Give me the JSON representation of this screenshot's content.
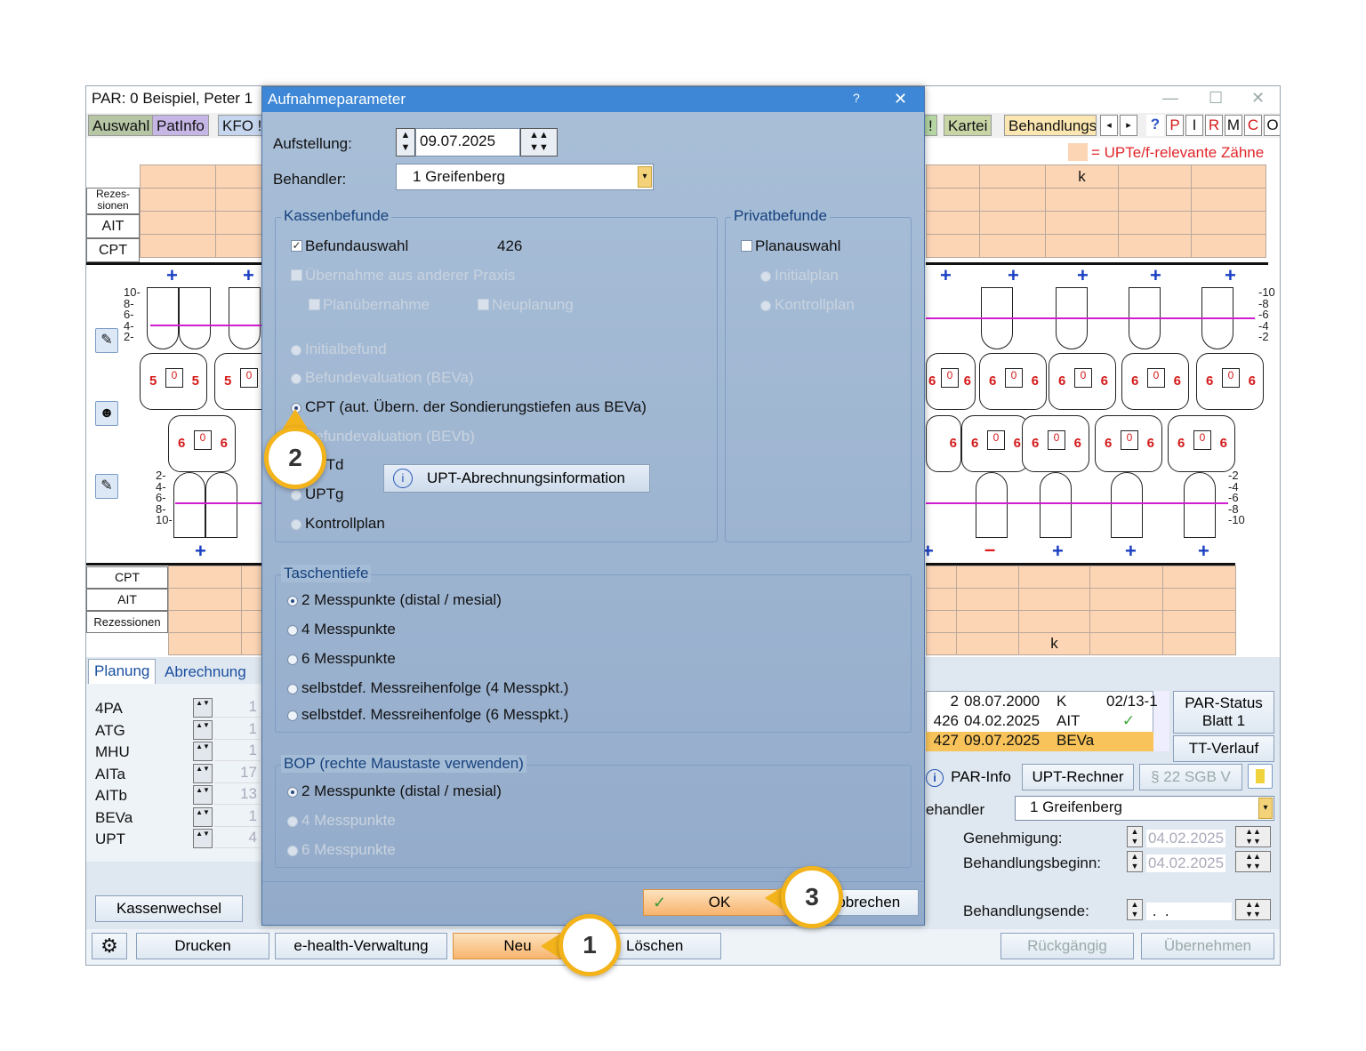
{
  "window": {
    "title": "PAR: 0  Beispiel, Peter  1",
    "nav": [
      "Auswahl",
      "PatInfo",
      "KFO !"
    ],
    "nav_right": [
      "!",
      "Kartei",
      "Behandlungs"
    ],
    "quick": [
      "P",
      "I",
      "R",
      "M",
      "C",
      "O"
    ],
    "legend": "= UPTe/f-relevante Zähne"
  },
  "chart": {
    "upper_rows": [
      "Rezes-\nsionen",
      "AIT",
      "CPT"
    ],
    "lower_rows": [
      "CPT",
      "AIT",
      "Rezessionen"
    ],
    "k_mark": "k",
    "scale_upper": [
      "10-",
      "8-",
      "6-",
      "4-",
      "2-"
    ],
    "scale_lower": [
      "2-",
      "4-",
      "6-",
      "8-",
      "10-"
    ],
    "scale_upper_right": [
      "-10",
      "-8",
      "-6",
      "-4",
      "-2"
    ],
    "scale_lower_right": [
      "-2",
      "-4",
      "-6",
      "-8",
      "-10"
    ],
    "upper_left_values": [
      [
        "5",
        "0",
        "5"
      ],
      [
        "5",
        "0",
        "5"
      ]
    ],
    "upper_left_sub": [
      "0",
      "0"
    ],
    "lower_left_values": [
      [
        "6",
        "0",
        "6"
      ]
    ],
    "upper_right_values": [
      [
        "6",
        "0",
        "6"
      ],
      [
        "6",
        "0",
        "6"
      ],
      [
        "6",
        "0",
        "6"
      ],
      [
        "6",
        "0",
        "6"
      ],
      [
        "6",
        "0",
        "6"
      ]
    ],
    "lower_right_values": [
      [
        "6",
        "0",
        "6"
      ],
      [
        "6",
        "0",
        "6"
      ],
      [
        "6",
        "0",
        "6"
      ],
      [
        "6",
        "0",
        "6"
      ],
      [
        "6",
        "0",
        "6"
      ]
    ]
  },
  "bottom": {
    "tabs": [
      "Planung",
      "Abrechnung"
    ],
    "plan_items": [
      {
        "label": "4PA",
        "value": "1"
      },
      {
        "label": "ATG",
        "value": "1"
      },
      {
        "label": "MHU",
        "value": "1"
      },
      {
        "label": "AITa",
        "value": "17"
      },
      {
        "label": "AITb",
        "value": "13"
      },
      {
        "label": "BEVa",
        "value": "1"
      },
      {
        "label": "UPT",
        "value": "4"
      }
    ],
    "history": [
      {
        "nr": "2",
        "date": "08.07.2000",
        "type": "K",
        "code": "02/13-1"
      },
      {
        "nr": "426",
        "date": "04.02.2025",
        "type": "AIT",
        "code": "✓"
      },
      {
        "nr": "427",
        "date": "09.07.2025",
        "type": "BEVa",
        "code": ""
      }
    ],
    "par_status": "PAR-Status\nBlatt 1",
    "tt_verlauf": "TT-Verlauf",
    "par_info": "PAR-Info",
    "upt_rechner": "UPT-Rechner",
    "sgb": "§ 22 SGB V",
    "behandler_label": "ehandler",
    "behandler_value": "1 Greifenberg",
    "genehmigung_label": "Genehmigung:",
    "genehmigung_value": "04.02.2025",
    "beginn_label": "Behandlungsbeginn:",
    "beginn_value": "04.02.2025",
    "ende_label": "Behandlungsende:",
    "ende_value": " .  . ",
    "kassenwechsel": "Kassenwechsel",
    "buttons": {
      "drucken": "Drucken",
      "ehealth": "e-health-Verwaltung",
      "neu": "Neu",
      "loeschen": "Löschen",
      "rueck": "Rückgängig",
      "uebernehmen": "Übernehmen"
    }
  },
  "dialog": {
    "title": "Aufnahmeparameter",
    "help": "?",
    "close": "✕",
    "aufstellung_label": "Aufstellung:",
    "aufstellung_value": "09.07.2025",
    "behandler_label": "Behandler:",
    "behandler_value": "1 Greifenberg",
    "kassen": {
      "title": "Kassenbefunde",
      "befundauswahl": "Befundauswahl",
      "befund_nr": "426",
      "uebernahme": "Übernahme aus anderer Praxis",
      "planuebernahme": "Planübernahme",
      "neuplanung": "Neuplanung",
      "initialbefund": "Initialbefund",
      "beva": "Befundevaluation (BEVa)",
      "cpt": "CPT (aut. Übern. der Sondierungstiefen aus BEVa)",
      "bevb": "Befundevaluation (BEVb)",
      "uptd": "UPTd",
      "uptg": "UPTg",
      "kontrollplan": "Kontrollplan",
      "upt_info": "UPT-Abrechnungsinformation"
    },
    "privat": {
      "title": "Privatbefunde",
      "planauswahl": "Planauswahl",
      "initialplan": "Initialplan",
      "kontrollplan": "Kontrollplan"
    },
    "taschentiefe": {
      "title": "Taschentiefe",
      "options": [
        "2 Messpunkte (distal / mesial)",
        "4 Messpunkte",
        "6 Messpunkte",
        "selbstdef. Messreihenfolge (4 Messpkt.)",
        "selbstdef. Messreihenfolge (6 Messpkt.)"
      ]
    },
    "bop": {
      "title": "BOP (rechte Maustaste verwenden)",
      "options": [
        "2 Messpunkte (distal / mesial)",
        "4 Messpunkte",
        "6 Messpunkte"
      ]
    },
    "ok": "OK",
    "abbrechen": "Abbrechen"
  },
  "callouts": [
    "1",
    "2",
    "3"
  ],
  "colors": {
    "accent": "#f3b31b",
    "dialog_title": "#3d87d6",
    "peach": "#fcd5b5",
    "magenta": "#d21cd2"
  }
}
